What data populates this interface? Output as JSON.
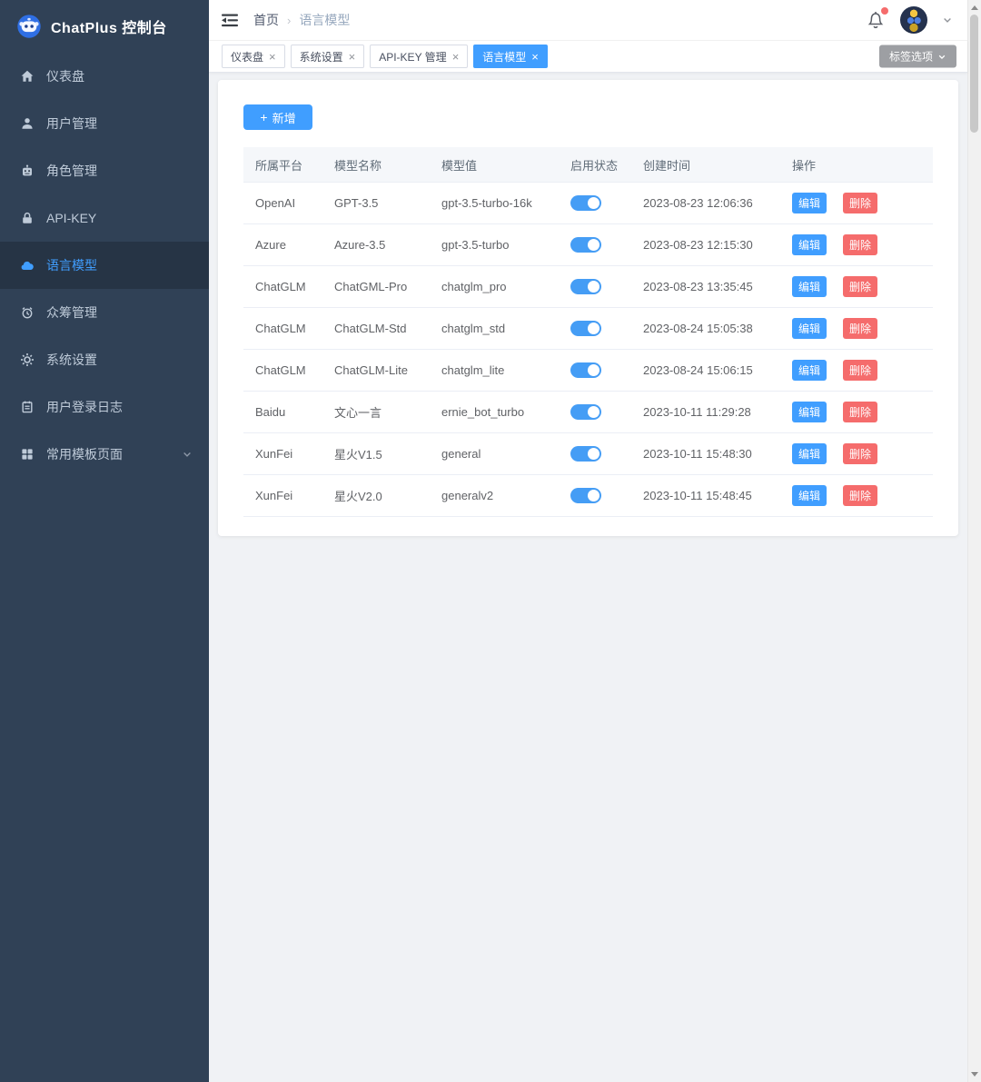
{
  "colors": {
    "accent": "#409EFF",
    "danger": "#F56C6C",
    "sidebar_bg": "#304156",
    "sidebar_active_bg": "#263445",
    "page_bg": "#f0f2f5"
  },
  "app": {
    "title": "ChatPlus 控制台"
  },
  "sidebar": {
    "items": [
      {
        "label": "仪表盘",
        "icon": "home-icon",
        "active": false,
        "expandable": false
      },
      {
        "label": "用户管理",
        "icon": "user-icon",
        "active": false,
        "expandable": false
      },
      {
        "label": "角色管理",
        "icon": "robot-icon",
        "active": false,
        "expandable": false
      },
      {
        "label": "API-KEY",
        "icon": "lock-icon",
        "active": false,
        "expandable": false
      },
      {
        "label": "语言模型",
        "icon": "language-model-icon",
        "active": true,
        "expandable": false
      },
      {
        "label": "众筹管理",
        "icon": "alarm-clock-icon",
        "active": false,
        "expandable": false
      },
      {
        "label": "系统设置",
        "icon": "gear-icon",
        "active": false,
        "expandable": false
      },
      {
        "label": "用户登录日志",
        "icon": "journal-icon",
        "active": false,
        "expandable": false
      },
      {
        "label": "常用模板页面",
        "icon": "grid-icon",
        "active": false,
        "expandable": true
      }
    ]
  },
  "header": {
    "breadcrumb": {
      "home": "首页",
      "separator": "›",
      "current": "语言模型"
    }
  },
  "tabs": {
    "items": [
      {
        "label": "仪表盘",
        "active": false
      },
      {
        "label": "系统设置",
        "active": false
      },
      {
        "label": "API-KEY 管理",
        "active": false
      },
      {
        "label": "语言模型",
        "active": true
      }
    ],
    "close_glyph": "×",
    "options_button": "标签选项"
  },
  "toolbar": {
    "plus_glyph": "+",
    "add_button": "新增"
  },
  "table": {
    "columns": [
      "所属平台",
      "模型名称",
      "模型值",
      "启用状态",
      "创建时间",
      "操作"
    ],
    "actions": {
      "edit": "编辑",
      "delete": "删除"
    },
    "rows": [
      {
        "platform": "OpenAI",
        "name": "GPT-3.5",
        "value": "gpt-3.5-turbo-16k",
        "enabled": true,
        "created": "2023-08-23 12:06:36"
      },
      {
        "platform": "Azure",
        "name": "Azure-3.5",
        "value": "gpt-3.5-turbo",
        "enabled": true,
        "created": "2023-08-23 12:15:30"
      },
      {
        "platform": "ChatGLM",
        "name": "ChatGML-Pro",
        "value": "chatglm_pro",
        "enabled": true,
        "created": "2023-08-23 13:35:45"
      },
      {
        "platform": "ChatGLM",
        "name": "ChatGLM-Std",
        "value": "chatglm_std",
        "enabled": true,
        "created": "2023-08-24 15:05:38"
      },
      {
        "platform": "ChatGLM",
        "name": "ChatGLM-Lite",
        "value": "chatglm_lite",
        "enabled": true,
        "created": "2023-08-24 15:06:15"
      },
      {
        "platform": "Baidu",
        "name": "文心一言",
        "value": "ernie_bot_turbo",
        "enabled": true,
        "created": "2023-10-11 11:29:28"
      },
      {
        "platform": "XunFei",
        "name": "星火V1.5",
        "value": "general",
        "enabled": true,
        "created": "2023-10-11 15:48:30"
      },
      {
        "platform": "XunFei",
        "name": "星火V2.0",
        "value": "generalv2",
        "enabled": true,
        "created": "2023-10-11 15:48:45"
      }
    ]
  }
}
